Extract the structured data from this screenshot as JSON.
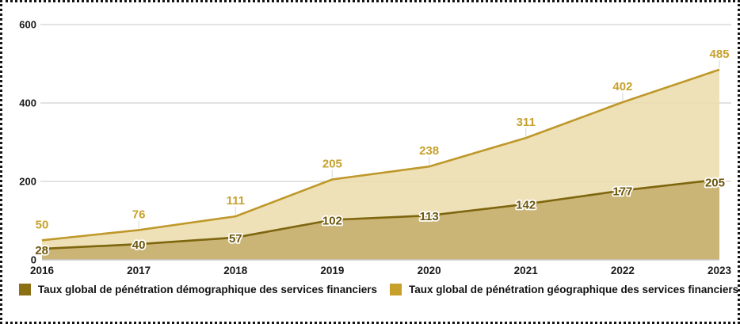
{
  "chart_data": {
    "type": "area",
    "categories": [
      "2016",
      "2017",
      "2018",
      "2019",
      "2020",
      "2021",
      "2022",
      "2023"
    ],
    "series": [
      {
        "name": "Taux global de pénétration démographique des services financiers",
        "values": [
          28,
          40,
          57,
          102,
          113,
          142,
          177,
          205
        ],
        "line_color": "#7E660F",
        "fill_color": "#C8B272",
        "label_color": "#6B570D",
        "label_outline": "#FFFFFF",
        "legend_color": "#8A6F14"
      },
      {
        "name": "Taux global de pénétration géographique des services financiers",
        "values": [
          50,
          76,
          111,
          205,
          238,
          311,
          402,
          485
        ],
        "line_color": "#BE982A",
        "fill_color": "#EBDCAA",
        "label_color": "#C7A12D",
        "legend_color": "#C7A02A"
      }
    ],
    "title": "",
    "xlabel": "",
    "ylabel": "",
    "ylim": [
      0,
      600
    ],
    "yticks": [
      0,
      200,
      400,
      600
    ],
    "grid": "horizontal",
    "legend_position": "bottom",
    "background": "#FFFFFF",
    "gridline_color": "#DADADA"
  }
}
